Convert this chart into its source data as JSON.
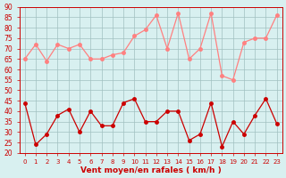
{
  "xlabel": "Vent moyen/en rafales ( km/h )",
  "x_values": [
    0,
    1,
    2,
    3,
    4,
    5,
    6,
    7,
    8,
    9,
    10,
    11,
    12,
    13,
    14,
    15,
    16,
    17,
    18,
    19,
    20,
    21,
    22,
    23
  ],
  "rafales": [
    65,
    72,
    64,
    72,
    70,
    72,
    65,
    65,
    67,
    68,
    76,
    79,
    86,
    70,
    87,
    65,
    70,
    87,
    57,
    55,
    73,
    75,
    75,
    86
  ],
  "moyen": [
    44,
    24,
    29,
    38,
    41,
    30,
    40,
    33,
    33,
    44,
    46,
    35,
    35,
    40,
    40,
    26,
    29,
    44,
    23,
    35,
    29,
    38,
    46,
    34
  ],
  "bg_color": "#d8f0f0",
  "grid_color": "#a0c0c0",
  "line_color_rafales": "#ff8080",
  "line_color_moyen": "#cc0000",
  "marker_color_rafales": "#ff8080",
  "marker_color_moyen": "#cc0000",
  "ylim": [
    20,
    90
  ],
  "yticks": [
    20,
    25,
    30,
    35,
    40,
    45,
    50,
    55,
    60,
    65,
    70,
    75,
    80,
    85,
    90
  ],
  "title_color": "#cc0000",
  "axes_color": "#cc0000",
  "tick_color": "#cc0000",
  "label_color": "#cc0000"
}
